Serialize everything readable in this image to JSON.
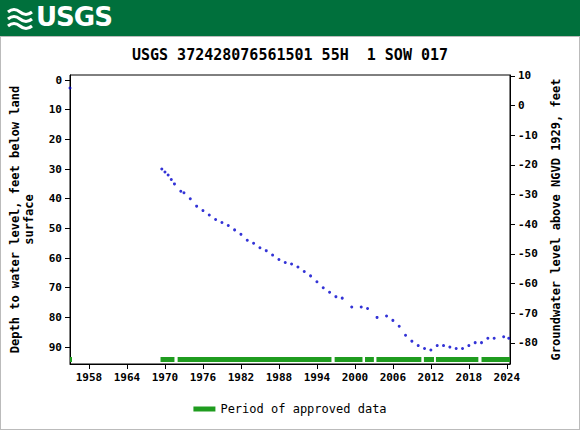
{
  "chart_data": {
    "type": "scatter",
    "header": "USGS",
    "title": "USGS 372428076561501 55H  1 SOW 017",
    "y_label": "Depth to water level, feet below land surface",
    "y2_label": "Groundwater level above NGVD 1929, feet",
    "x": [
      1955.0,
      1969.5,
      1970.0,
      1970.5,
      1971.0,
      1971.5,
      1972.5,
      1973.0,
      1974.0,
      1975.0,
      1976.0,
      1977.0,
      1978.0,
      1979.0,
      1980.0,
      1981.0,
      1982.0,
      1983.0,
      1984.0,
      1985.0,
      1986.0,
      1987.0,
      1988.0,
      1989.0,
      1990.0,
      1991.0,
      1992.0,
      1993.0,
      1994.0,
      1995.0,
      1996.0,
      1997.0,
      1998.0,
      1999.5,
      2001.0,
      2002.0,
      2003.5,
      2005.0,
      2006.0,
      2007.0,
      2008.0,
      2009.0,
      2010.0,
      2011.0,
      2012.0,
      2013.0,
      2014.0,
      2015.0,
      2016.0,
      2017.0,
      2018.0,
      2019.0,
      2020.0,
      2021.0,
      2022.0,
      2023.5,
      2024.3
    ],
    "series": [
      {
        "color": "#0000cc",
        "marker": "circle",
        "values": [
          2.7,
          30,
          31,
          32,
          33.5,
          35,
          37.5,
          38,
          40,
          42.5,
          44,
          45.5,
          47,
          48,
          49,
          50.5,
          52,
          54,
          55,
          56.5,
          57.5,
          59,
          60.5,
          61.5,
          62,
          63,
          64.5,
          66,
          68,
          70,
          71.5,
          73,
          73.5,
          76.5,
          76.5,
          77,
          80,
          79.5,
          81,
          83,
          86,
          88,
          89.5,
          90.5,
          91,
          89.5,
          89.5,
          90,
          90.5,
          90.5,
          89.5,
          88.5,
          88.5,
          87,
          87,
          86.5,
          87
        ]
      }
    ],
    "approved_periods": {
      "name": "Period of approved data",
      "color": "#1f9c1f",
      "ranges": [
        [
          1955.0,
          1955.3
        ],
        [
          1969.3,
          1971.5
        ],
        [
          1972.0,
          1996.3
        ],
        [
          1996.8,
          2001.2
        ],
        [
          2001.6,
          2003.0
        ],
        [
          2003.4,
          2010.5
        ],
        [
          2010.9,
          2012.5
        ],
        [
          2012.8,
          2019.5
        ],
        [
          2020.0,
          2024.5
        ]
      ]
    },
    "xlim": [
      1955.0,
      2024.5
    ],
    "xticks": [
      1958,
      1964,
      1970,
      1976,
      1982,
      1988,
      1994,
      2000,
      2006,
      2012,
      2018,
      2024
    ],
    "ylim": [
      95.7,
      -1.7
    ],
    "yticks": [
      0,
      10,
      20,
      30,
      40,
      50,
      60,
      70,
      80,
      90
    ],
    "y2lim": [
      -87.1,
      10.3
    ],
    "y2ticks": [
      10,
      0,
      -10,
      -20,
      -30,
      -40,
      -50,
      -60,
      -70,
      -80
    ],
    "grid": false,
    "legend": "bottom"
  }
}
